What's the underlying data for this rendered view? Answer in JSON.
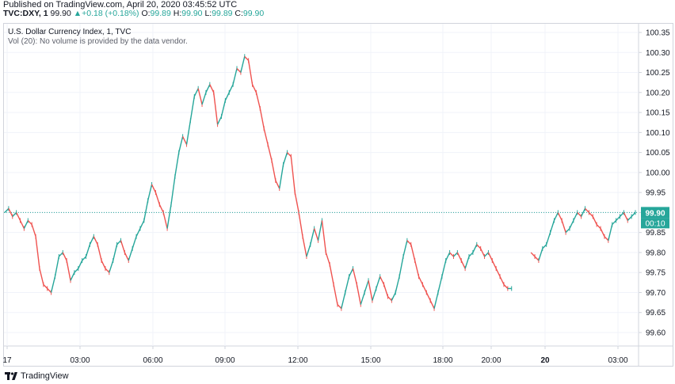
{
  "header": {
    "published": "Published on TradingView.com, April 20, 2020 03:45:52 UTC",
    "symbol": "TVC:DXY, 1",
    "last": "99.90",
    "change_arrow": "▲",
    "change": "+0.18 (+0.18%)",
    "o_label": "O:",
    "o": "99.89",
    "h_label": "H:",
    "h": "99.90",
    "l_label": "L:",
    "l": "99.89",
    "c_label": "C:",
    "c": "99.90"
  },
  "legend": {
    "title": "U.S. Dollar Currency Index, 1, TVC",
    "volume_note": "Vol (20): No volume is provided by the data vendor."
  },
  "footer": {
    "brand": "TradingView",
    "logo_icon": "tradingview-logo-icon"
  },
  "colors": {
    "up": "#26a69a",
    "down": "#ef5350",
    "price_line": "#26a69a",
    "grid": "#f0f3fa"
  },
  "chart_data": {
    "type": "line",
    "title": "U.S. Dollar Currency Index, 1, TVC",
    "ylim": [
      99.56,
      100.33
    ],
    "y_ticks": [
      "100.35",
      "100.30",
      "100.25",
      "100.20",
      "100.15",
      "100.10",
      "100.05",
      "100.00",
      "99.95",
      "99.90",
      "99.85",
      "99.80",
      "99.75",
      "99.70",
      "99.65",
      "99.60"
    ],
    "x_ticks": [
      {
        "label": "17",
        "bold": false
      },
      {
        "label": "03:00",
        "bold": false
      },
      {
        "label": "06:00",
        "bold": false
      },
      {
        "label": "09:00",
        "bold": false
      },
      {
        "label": "12:00",
        "bold": false
      },
      {
        "label": "15:00",
        "bold": false
      },
      {
        "label": "18:00",
        "bold": false
      },
      {
        "label": "20:00",
        "bold": false
      },
      {
        "label": "20",
        "bold": true
      },
      {
        "label": "03:00",
        "bold": false
      }
    ],
    "last_price": "99.90",
    "countdown": "00:10",
    "last_value": 99.9,
    "series": [
      {
        "values": [
          99.9,
          99.91,
          99.89,
          99.9,
          99.88,
          99.86,
          99.88,
          99.87,
          99.84,
          99.76,
          99.72,
          99.71,
          99.7,
          99.74,
          99.79,
          99.8,
          99.78,
          99.73,
          99.75,
          99.76,
          99.78,
          99.79,
          99.82,
          99.84,
          99.82,
          99.78,
          99.76,
          99.75,
          99.78,
          99.82,
          99.83,
          99.8,
          99.78,
          99.81,
          99.84,
          99.86,
          99.88,
          99.93,
          99.97,
          99.95,
          99.92,
          99.9,
          99.86,
          99.92,
          99.99,
          100.05,
          100.09,
          100.07,
          100.13,
          100.19,
          100.21,
          100.17,
          100.2,
          100.22,
          100.2,
          100.12,
          100.14,
          100.18,
          100.2,
          100.22,
          100.26,
          100.25,
          100.29,
          100.28,
          100.22,
          100.2,
          100.16,
          100.11,
          100.07,
          100.03,
          99.98,
          99.96,
          100.02,
          100.05,
          100.04,
          99.95,
          99.9,
          99.84,
          99.79,
          99.82,
          99.86,
          99.83,
          99.88,
          99.8,
          99.77,
          99.72,
          99.67,
          99.66,
          99.7,
          99.74,
          99.76,
          99.72,
          99.67,
          99.7,
          99.73,
          99.68,
          99.71,
          99.74,
          99.72,
          99.69,
          99.68,
          99.7,
          99.74,
          99.79,
          99.83,
          99.82,
          99.78,
          99.74,
          99.72,
          99.7,
          99.68,
          99.66,
          99.7,
          99.74,
          99.78,
          99.8,
          99.79,
          99.8,
          99.78,
          99.76,
          99.79,
          99.8,
          99.82,
          99.81,
          99.79,
          99.8,
          99.78,
          99.76,
          99.74,
          99.72,
          99.71,
          99.71,
          null,
          null,
          null,
          null,
          99.8,
          99.79,
          99.78,
          99.81,
          99.82,
          99.85,
          99.88,
          99.9,
          99.88,
          99.85,
          99.86,
          99.88,
          99.9,
          99.89,
          99.91,
          99.9,
          99.89,
          99.87,
          99.86,
          99.84,
          99.83,
          99.87,
          99.88,
          99.89,
          99.9,
          99.88,
          99.89,
          99.9
        ]
      }
    ]
  }
}
